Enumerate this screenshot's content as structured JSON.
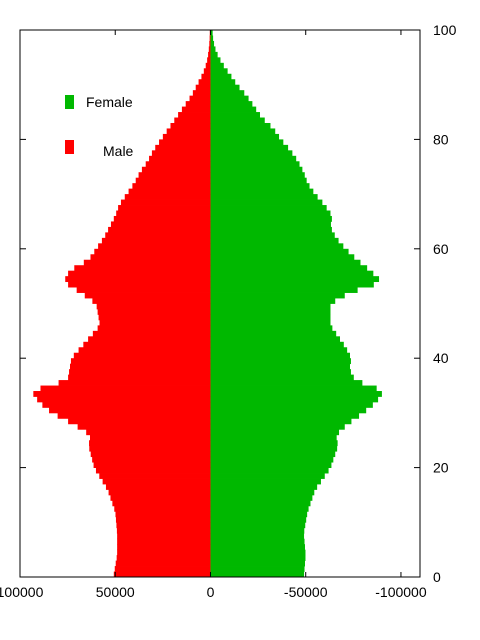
{
  "chart_data": {
    "type": "bar",
    "orientation": "horizontal-population-pyramid",
    "title": "",
    "xlabel": "",
    "ylabel": "",
    "xlim": [
      100000,
      -110000
    ],
    "ylim": [
      0,
      100
    ],
    "x_ticks": [
      {
        "value": 100000,
        "label": "100000"
      },
      {
        "value": 50000,
        "label": "50000"
      },
      {
        "value": 0,
        "label": "0"
      },
      {
        "value": -50000,
        "label": "-50000"
      },
      {
        "value": -100000,
        "label": "-100000"
      }
    ],
    "y_ticks": [
      {
        "value": 0,
        "label": "0"
      },
      {
        "value": 20,
        "label": "20"
      },
      {
        "value": 40,
        "label": "40"
      },
      {
        "value": 60,
        "label": "60"
      },
      {
        "value": 80,
        "label": "80"
      },
      {
        "value": 100,
        "label": "100"
      }
    ],
    "grid": false,
    "legend_position": "top-left",
    "series": [
      {
        "name": "Female",
        "color": "#00b800",
        "note_sign": "plotted as negative values (right side)",
        "points": [
          [
            0,
            -49000
          ],
          [
            4,
            -50000
          ],
          [
            8,
            -49000
          ],
          [
            12,
            -51000
          ],
          [
            16,
            -55000
          ],
          [
            20,
            -63000
          ],
          [
            24,
            -67000
          ],
          [
            26,
            -66000
          ],
          [
            28,
            -72000
          ],
          [
            30,
            -80000
          ],
          [
            32,
            -87000
          ],
          [
            34,
            -91000
          ],
          [
            36,
            -76000
          ],
          [
            38,
            -73000
          ],
          [
            40,
            -74000
          ],
          [
            42,
            -71000
          ],
          [
            46,
            -63000
          ],
          [
            50,
            -63000
          ],
          [
            52,
            -73000
          ],
          [
            54,
            -90000
          ],
          [
            56,
            -84000
          ],
          [
            58,
            -77000
          ],
          [
            60,
            -71000
          ],
          [
            62,
            -66000
          ],
          [
            64,
            -63000
          ],
          [
            66,
            -64000
          ],
          [
            68,
            -60000
          ],
          [
            70,
            -55000
          ],
          [
            72,
            -51000
          ],
          [
            74,
            -49000
          ],
          [
            76,
            -46000
          ],
          [
            78,
            -42000
          ],
          [
            80,
            -37000
          ],
          [
            82,
            -33000
          ],
          [
            84,
            -27000
          ],
          [
            86,
            -23000
          ],
          [
            88,
            -19000
          ],
          [
            90,
            -14000
          ],
          [
            92,
            -10000
          ],
          [
            94,
            -6000
          ],
          [
            96,
            -3000
          ],
          [
            98,
            -1500
          ],
          [
            100,
            -1000
          ]
        ]
      },
      {
        "name": "Male",
        "color": "#ff0000",
        "points": [
          [
            0,
            51000
          ],
          [
            4,
            49000
          ],
          [
            8,
            49000
          ],
          [
            12,
            50000
          ],
          [
            16,
            54000
          ],
          [
            20,
            61000
          ],
          [
            24,
            64000
          ],
          [
            26,
            63000
          ],
          [
            28,
            72000
          ],
          [
            30,
            83000
          ],
          [
            32,
            90000
          ],
          [
            34,
            94000
          ],
          [
            36,
            75000
          ],
          [
            38,
            74000
          ],
          [
            40,
            73000
          ],
          [
            42,
            68000
          ],
          [
            46,
            58000
          ],
          [
            50,
            60000
          ],
          [
            52,
            68000
          ],
          [
            54,
            77000
          ],
          [
            56,
            74000
          ],
          [
            58,
            64000
          ],
          [
            60,
            60000
          ],
          [
            62,
            56000
          ],
          [
            64,
            53000
          ],
          [
            66,
            50000
          ],
          [
            68,
            48000
          ],
          [
            70,
            44000
          ],
          [
            72,
            40000
          ],
          [
            74,
            37000
          ],
          [
            76,
            33000
          ],
          [
            78,
            30000
          ],
          [
            80,
            26000
          ],
          [
            82,
            22000
          ],
          [
            84,
            18000
          ],
          [
            86,
            14000
          ],
          [
            88,
            10000
          ],
          [
            90,
            7000
          ],
          [
            92,
            4000
          ],
          [
            94,
            2000
          ],
          [
            96,
            1000
          ],
          [
            98,
            500
          ],
          [
            100,
            300
          ]
        ]
      }
    ]
  }
}
